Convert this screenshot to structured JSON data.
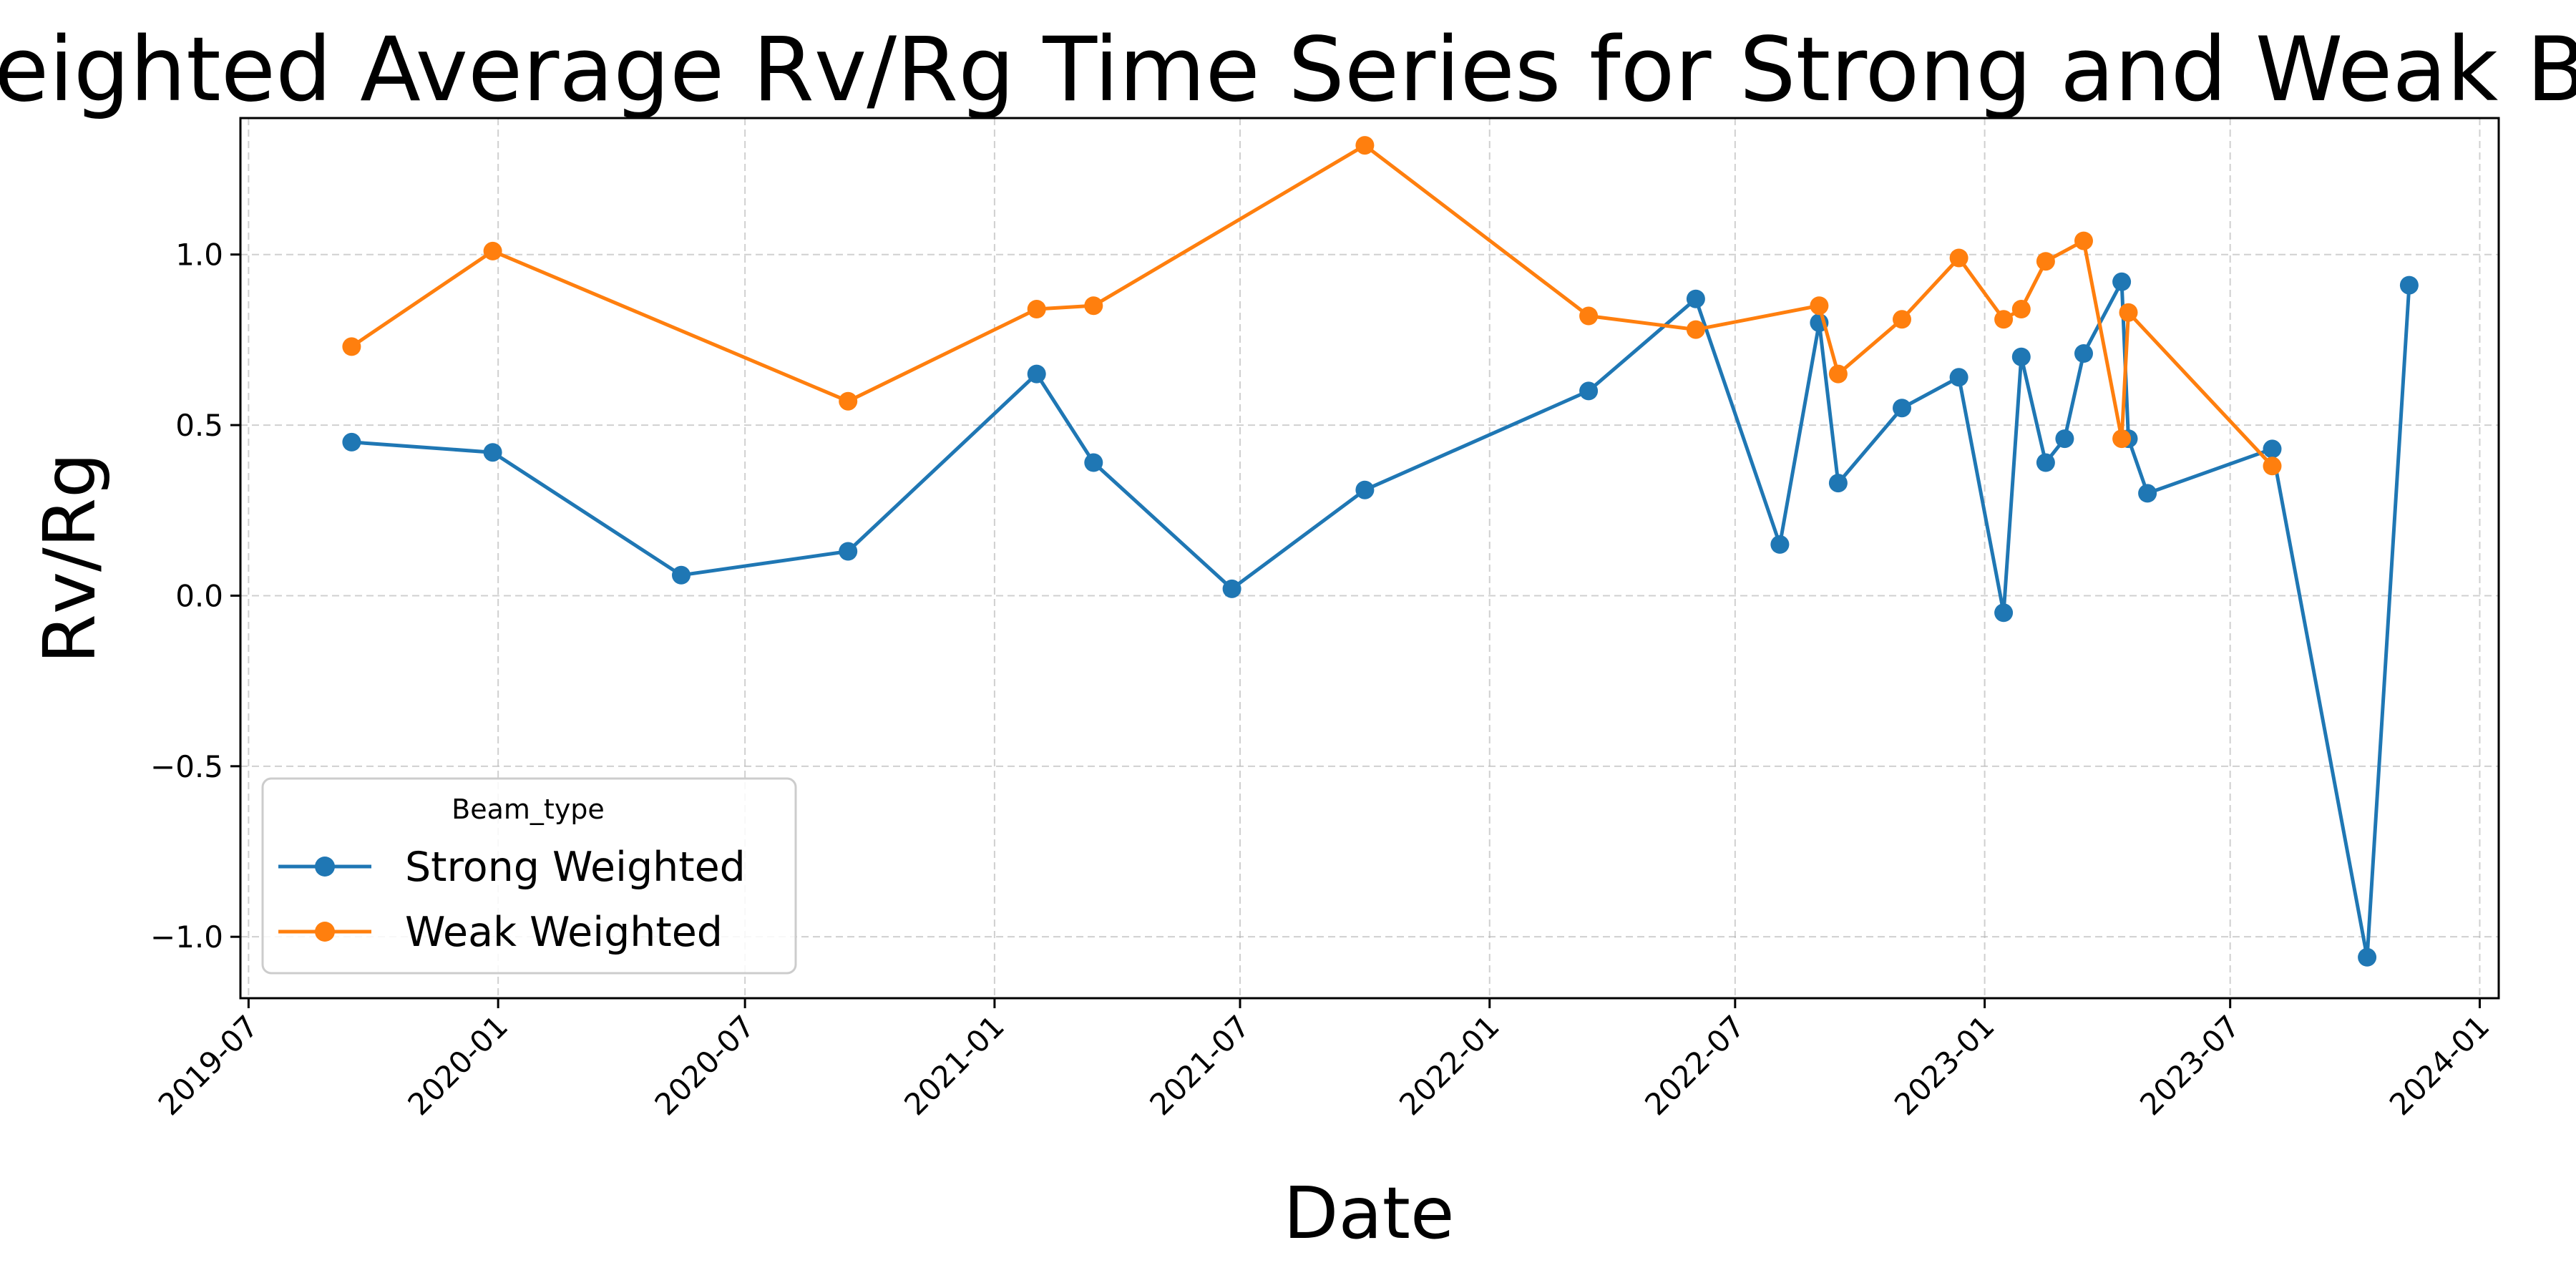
{
  "chart_data": {
    "type": "line",
    "title": "Weighted Average Rv/Rg Time Series for Strong and Weak Beams",
    "xlabel": "Date",
    "ylabel": "Rv/Rg",
    "x_axis": "date",
    "xlim": [
      "2019-06-25",
      "2024-01-15"
    ],
    "ylim": [
      -1.18,
      1.4
    ],
    "x_ticks": [
      "2019-07",
      "2020-01",
      "2020-07",
      "2021-01",
      "2021-07",
      "2022-01",
      "2022-07",
      "2023-01",
      "2023-07",
      "2024-01"
    ],
    "y_ticks": [
      -1.0,
      -0.5,
      0.0,
      0.5,
      1.0
    ],
    "y_tick_labels": [
      "−1.0",
      "−0.5",
      "0.0",
      "0.5",
      "1.0"
    ],
    "grid": true,
    "legend": {
      "title": "Beam_type",
      "placement": "lower-left"
    },
    "series": [
      {
        "name": "Strong Weighted",
        "color": "#1f77b4",
        "points": [
          {
            "x": "2019-09-15",
            "y": 0.45
          },
          {
            "x": "2019-12-28",
            "y": 0.42
          },
          {
            "x": "2020-05-15",
            "y": 0.06
          },
          {
            "x": "2020-09-15",
            "y": 0.13
          },
          {
            "x": "2021-02-01",
            "y": 0.65
          },
          {
            "x": "2021-03-15",
            "y": 0.39
          },
          {
            "x": "2021-06-25",
            "y": 0.02
          },
          {
            "x": "2021-10-01",
            "y": 0.31
          },
          {
            "x": "2022-03-15",
            "y": 0.6
          },
          {
            "x": "2022-06-02",
            "y": 0.87
          },
          {
            "x": "2022-08-03",
            "y": 0.15
          },
          {
            "x": "2022-09-01",
            "y": 0.8
          },
          {
            "x": "2022-09-15",
            "y": 0.33
          },
          {
            "x": "2022-11-01",
            "y": 0.55
          },
          {
            "x": "2022-12-13",
            "y": 0.64
          },
          {
            "x": "2023-01-15",
            "y": -0.05
          },
          {
            "x": "2023-01-28",
            "y": 0.7
          },
          {
            "x": "2023-02-15",
            "y": 0.39
          },
          {
            "x": "2023-03-01",
            "y": 0.46
          },
          {
            "x": "2023-03-15",
            "y": 0.71
          },
          {
            "x": "2023-04-12",
            "y": 0.92
          },
          {
            "x": "2023-04-17",
            "y": 0.46
          },
          {
            "x": "2023-05-01",
            "y": 0.3
          },
          {
            "x": "2023-08-01",
            "y": 0.43
          },
          {
            "x": "2023-10-10",
            "y": -1.06
          },
          {
            "x": "2023-11-10",
            "y": 0.91
          }
        ]
      },
      {
        "name": "Weak Weighted",
        "color": "#ff7f0e",
        "points": [
          {
            "x": "2019-09-15",
            "y": 0.73
          },
          {
            "x": "2019-12-28",
            "y": 1.01
          },
          {
            "x": "2020-09-15",
            "y": 0.57
          },
          {
            "x": "2021-02-01",
            "y": 0.84
          },
          {
            "x": "2021-03-15",
            "y": 0.85
          },
          {
            "x": "2021-10-01",
            "y": 1.32
          },
          {
            "x": "2022-03-15",
            "y": 0.82
          },
          {
            "x": "2022-06-02",
            "y": 0.78
          },
          {
            "x": "2022-09-01",
            "y": 0.85
          },
          {
            "x": "2022-09-15",
            "y": 0.65
          },
          {
            "x": "2022-11-01",
            "y": 0.81
          },
          {
            "x": "2022-12-13",
            "y": 0.99
          },
          {
            "x": "2023-01-15",
            "y": 0.81
          },
          {
            "x": "2023-01-28",
            "y": 0.84
          },
          {
            "x": "2023-02-15",
            "y": 0.98
          },
          {
            "x": "2023-03-15",
            "y": 1.04
          },
          {
            "x": "2023-04-12",
            "y": 0.46
          },
          {
            "x": "2023-04-17",
            "y": 0.83
          },
          {
            "x": "2023-08-01",
            "y": 0.38
          }
        ]
      }
    ]
  }
}
